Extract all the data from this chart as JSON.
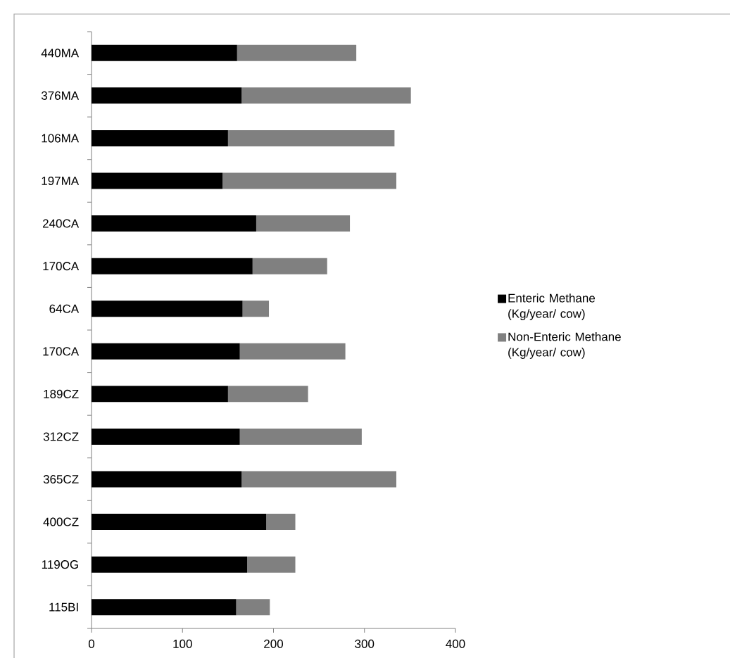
{
  "chart_data": {
    "type": "bar",
    "orientation": "horizontal",
    "stacked": true,
    "categories": [
      "440MA",
      "376MA",
      "106MA",
      "197MA",
      "240CA",
      "170CA",
      "64CA",
      "170CA",
      "189CZ",
      "312CZ",
      "365CZ",
      "400CZ",
      "119OG",
      "115BI"
    ],
    "series": [
      {
        "name": "Enteric Methane (Kg/year/ cow)",
        "color": "#000000",
        "values": [
          160,
          165,
          150,
          144,
          181,
          177,
          166,
          163,
          150,
          163,
          165,
          192,
          171,
          159
        ]
      },
      {
        "name": "Non-Enteric Methane (Kg/year/ cow)",
        "color": "#808080",
        "values": [
          131,
          186,
          183,
          191,
          103,
          82,
          29,
          116,
          88,
          134,
          170,
          32,
          53,
          37
        ]
      }
    ],
    "xlim": [
      0,
      400
    ],
    "xticks": [
      0,
      100,
      200,
      300,
      400
    ],
    "grid": false,
    "legend": "right"
  }
}
